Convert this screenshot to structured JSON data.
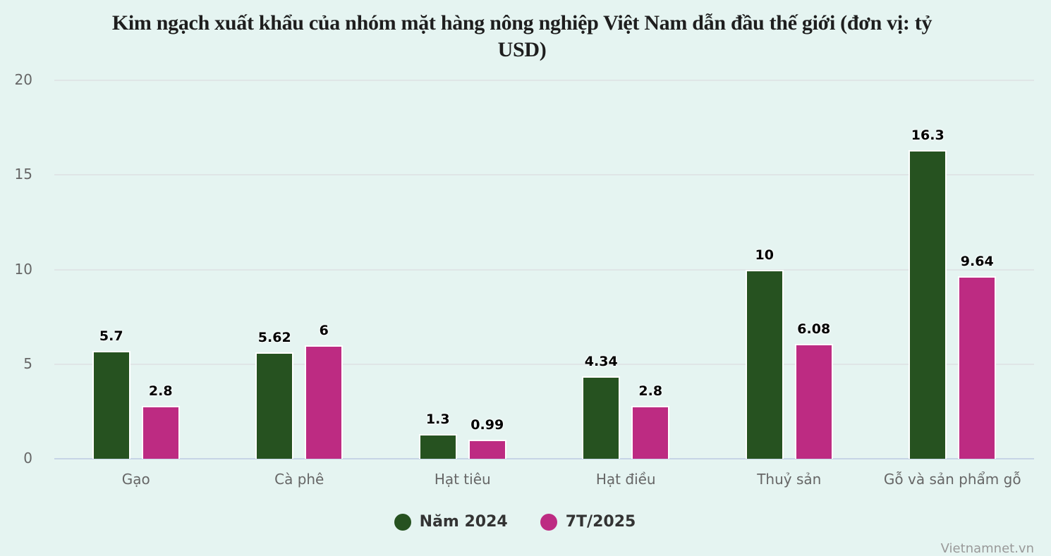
{
  "chart_data": {
    "type": "bar",
    "title": "Kim ngạch xuất khẩu của nhóm mặt hàng nông nghiệp Việt Nam dẫn đầu thế giới (đơn vị: tỷ USD)",
    "xlabel": "",
    "ylabel": "",
    "ylim": [
      0,
      20
    ],
    "yticks": [
      0,
      5,
      10,
      15,
      20
    ],
    "grid": true,
    "legend_position": "bottom",
    "categories": [
      "Gạo",
      "Cà phê",
      "Hạt tiêu",
      "Hạt điều",
      "Thuỷ sản",
      "Gỗ và sản phẩm gỗ"
    ],
    "series": [
      {
        "name": "Năm 2024",
        "color": "#265220",
        "values": [
          5.7,
          5.62,
          1.3,
          4.34,
          10,
          16.3
        ]
      },
      {
        "name": "7T/2025",
        "color": "#bd2b82",
        "values": [
          2.8,
          6,
          0.99,
          2.8,
          6.08,
          9.64
        ]
      }
    ]
  },
  "title_line1": "Kim ngạch xuất khẩu của nhóm mặt hàng nông nghiệp Việt Nam dẫn đầu thế giới (đơn vị: tỷ",
  "title_line2": "USD)",
  "y_ticks": [
    "20",
    "15",
    "10",
    "5",
    "0"
  ],
  "labels": {
    "s0": [
      "5.7",
      "5.62",
      "1.3",
      "4.34",
      "10",
      "16.3"
    ],
    "s1": [
      "2.8",
      "6",
      "0.99",
      "2.8",
      "6.08",
      "9.64"
    ]
  },
  "legend": [
    {
      "label": "Năm 2024",
      "color": "#265220"
    },
    {
      "label": "7T/2025",
      "color": "#bd2b82"
    }
  ],
  "credit": "Vietnamnet.vn"
}
